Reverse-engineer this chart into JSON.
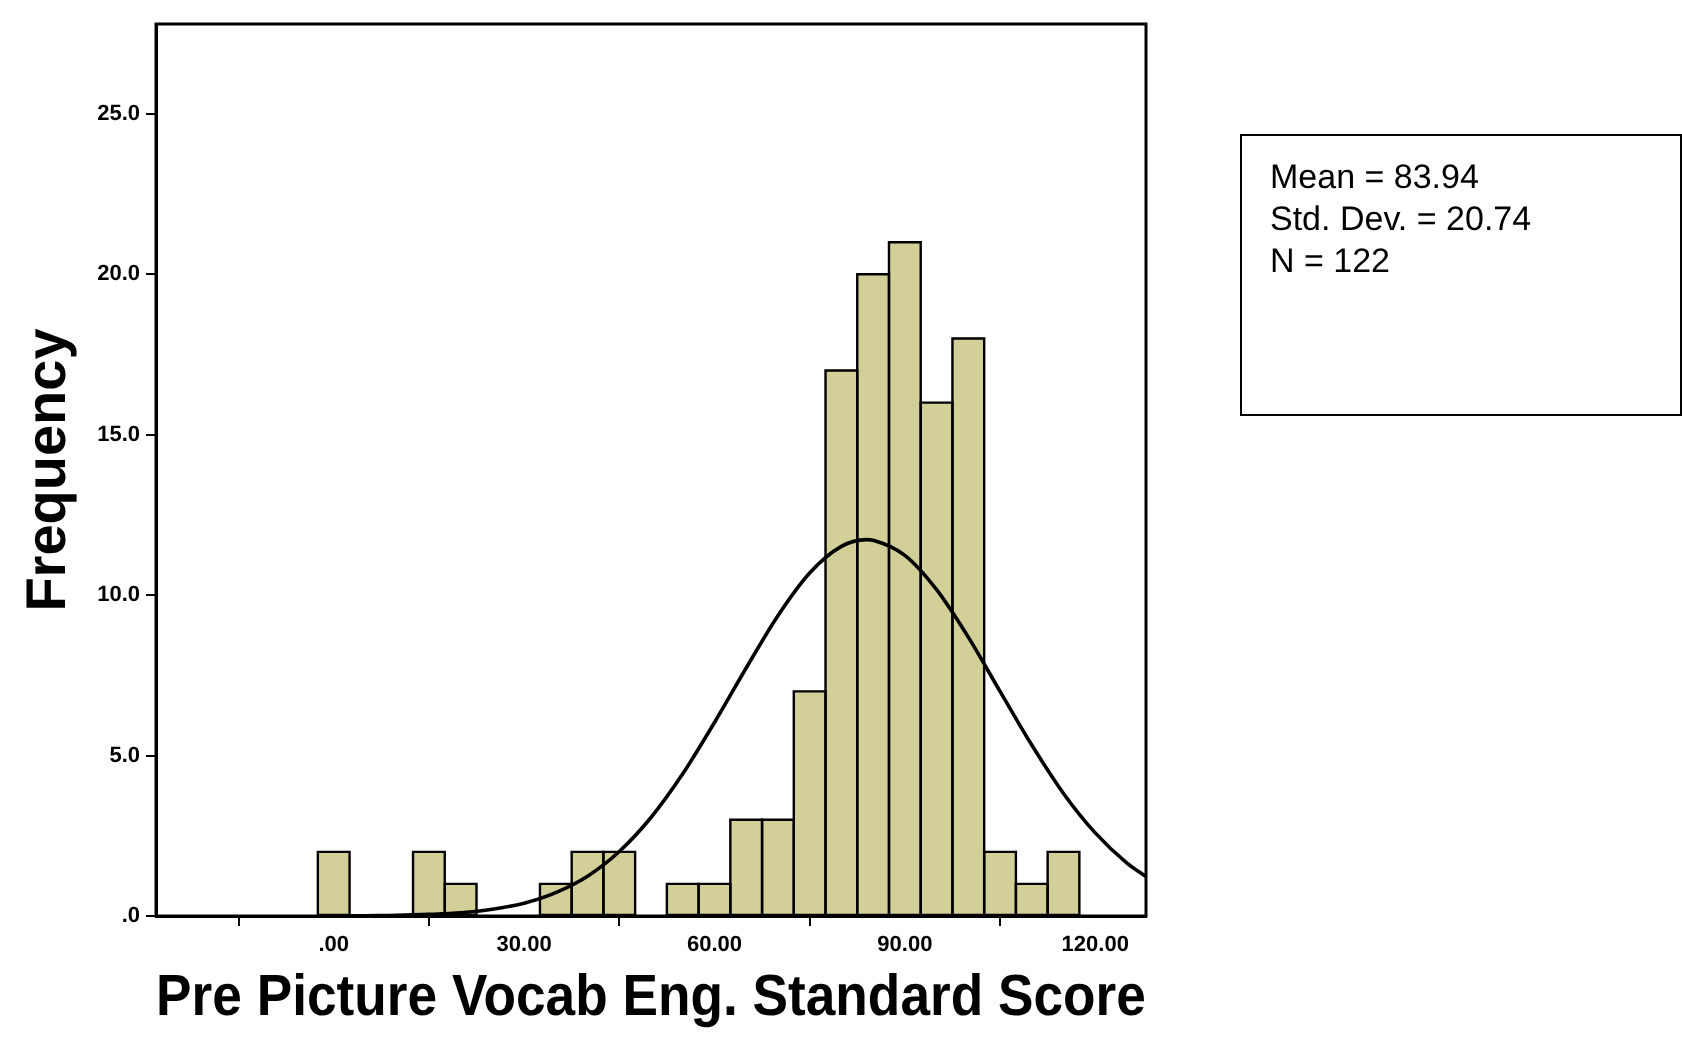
{
  "chart_data": {
    "type": "histogram",
    "xlabel": "Pre Picture Vocab Eng. Standard Score",
    "ylabel": "Frequency",
    "annotations": [
      "Mean = 83.94",
      "Std. Dev. = 20.74",
      "N = 122"
    ],
    "bins": [
      -2.5,
      2.5,
      7.5,
      12.5,
      17.5,
      22.5,
      27.5,
      32.5,
      37.5,
      42.5,
      47.5,
      52.5,
      57.5,
      62.5,
      67.5,
      72.5,
      77.5,
      82.5,
      87.5,
      92.5,
      97.5,
      102.5,
      107.5,
      112.5,
      117.5
    ],
    "values": [
      2,
      0,
      0,
      2,
      1,
      0,
      0,
      1,
      2,
      2,
      0,
      1,
      1,
      3,
      3,
      7,
      17,
      20,
      21,
      16,
      18,
      2,
      1,
      2
    ],
    "color": "#d3cf98",
    "series": [
      {
        "type": "line",
        "color": "#000000",
        "x": [
          0,
          5,
          10,
          15,
          20,
          25,
          30,
          35,
          40,
          45,
          50,
          55,
          60,
          65,
          70,
          75,
          80,
          83.94,
          85,
          90,
          95,
          100,
          105,
          110,
          115,
          120,
          125,
          128
        ],
        "values": [
          0.0,
          0.01,
          0.02,
          0.05,
          0.1,
          0.21,
          0.4,
          0.73,
          1.24,
          2.01,
          3.07,
          4.43,
          6.03,
          7.73,
          9.36,
          10.69,
          11.52,
          11.73,
          11.71,
          11.24,
          10.17,
          8.69,
          7.0,
          5.33,
          3.82,
          2.59,
          1.65,
          1.23
        ]
      }
    ],
    "xlim": [
      -28,
      128
    ],
    "xticks": [
      {
        "value": 0,
        "label": ".00"
      },
      {
        "value": 30,
        "label": "30.00"
      },
      {
        "value": 60,
        "label": "60.00"
      },
      {
        "value": 90,
        "label": "90.00"
      },
      {
        "value": 120,
        "label": "120.00"
      }
    ],
    "ylim": [
      0,
      27.8
    ],
    "yticks": [
      {
        "value": 0,
        "label": ".0"
      },
      {
        "value": 5,
        "label": "5.0"
      },
      {
        "value": 10,
        "label": "10.0"
      },
      {
        "value": 15,
        "label": "15.0"
      },
      {
        "value": 20,
        "label": "20.0"
      },
      {
        "value": 25,
        "label": "25.0"
      }
    ],
    "legend": false,
    "marker": "none"
  }
}
